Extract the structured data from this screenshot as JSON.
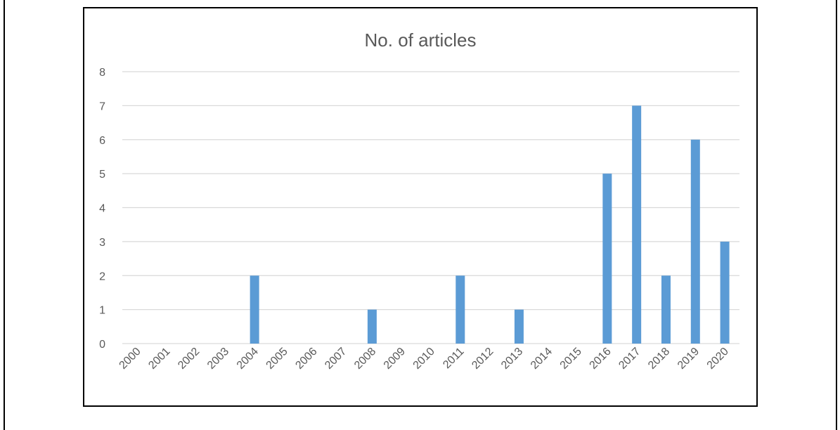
{
  "chart_data": {
    "type": "bar",
    "title": "No.  of articles",
    "xlabel": "",
    "ylabel": "",
    "categories": [
      "2000",
      "2001",
      "2002",
      "2003",
      "2004",
      "2005",
      "2006",
      "2007",
      "2008",
      "2009",
      "2010",
      "2011",
      "2012",
      "2013",
      "2014",
      "2015",
      "2016",
      "2017",
      "2018",
      "2019",
      "2020"
    ],
    "values": [
      0,
      0,
      0,
      0,
      2,
      0,
      0,
      0,
      1,
      0,
      0,
      2,
      0,
      1,
      0,
      0,
      5,
      7,
      2,
      6,
      3
    ],
    "ylim": [
      0,
      8
    ],
    "yticks": [
      0,
      1,
      2,
      3,
      4,
      5,
      6,
      7,
      8
    ],
    "grid": true,
    "legend": "none",
    "bar_color": "#5b9bd5",
    "grid_color": "#d9d9d9",
    "text_color": "#595959"
  }
}
